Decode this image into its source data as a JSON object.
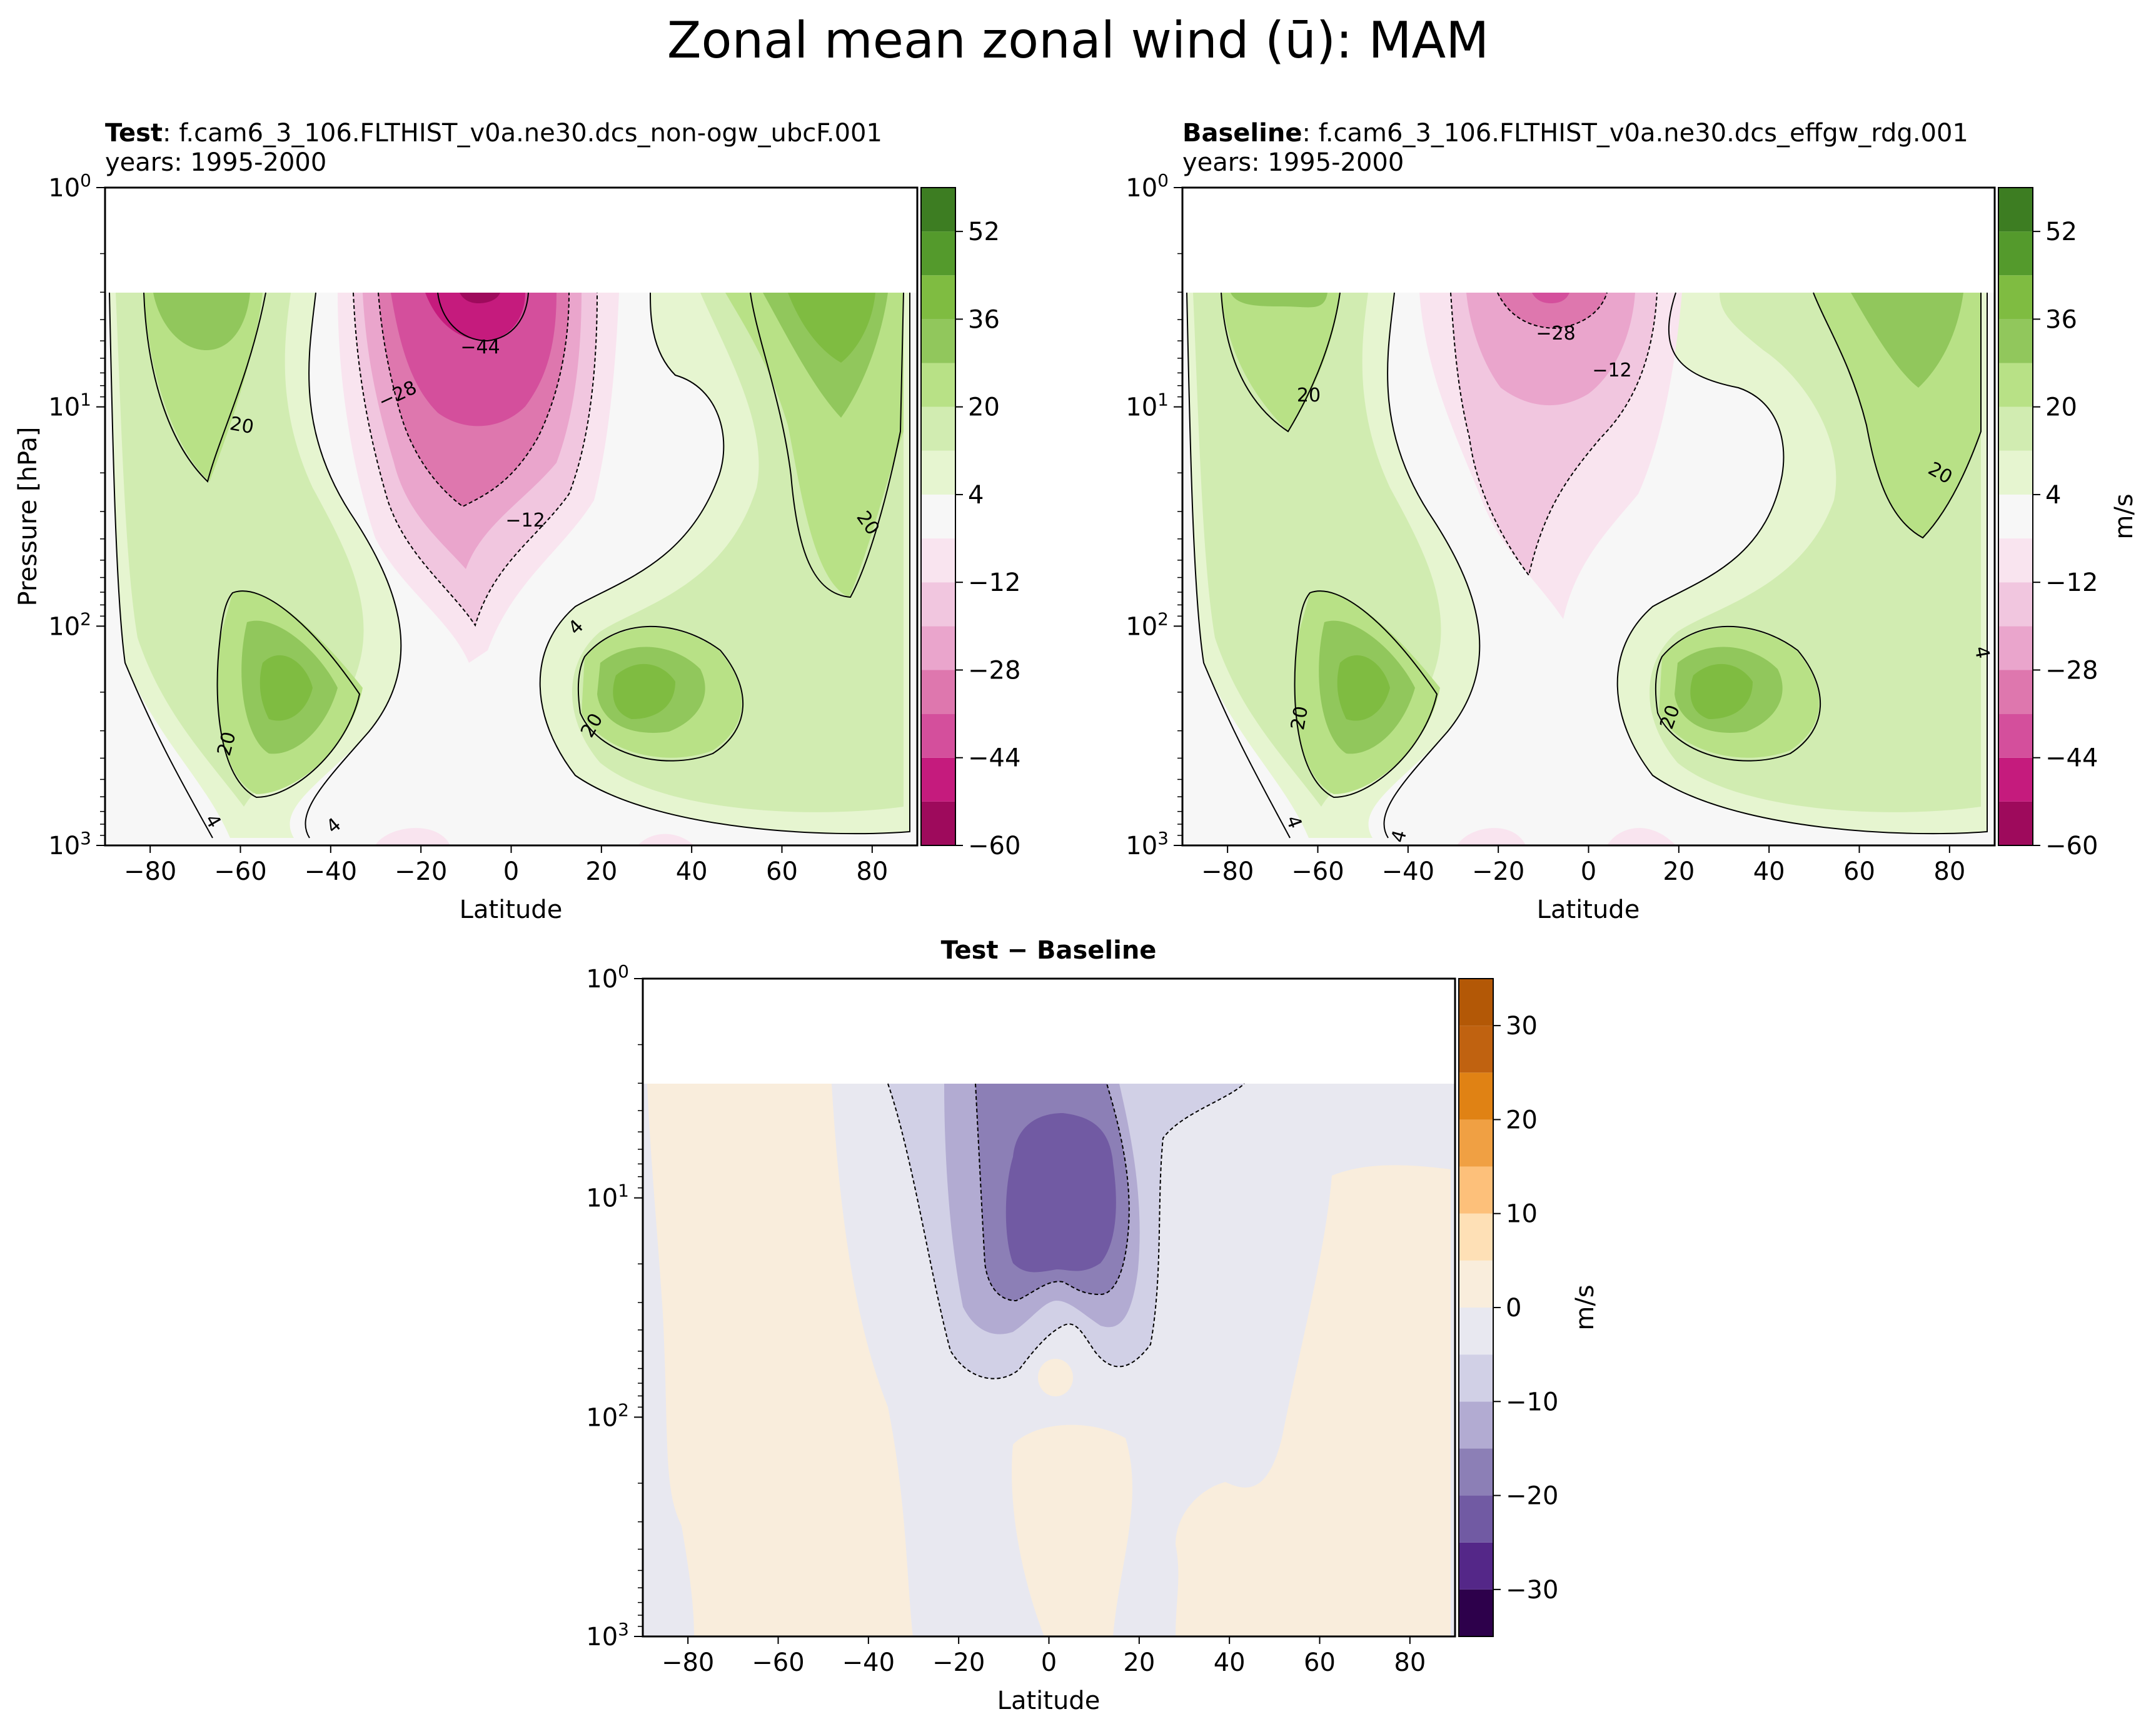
{
  "title": "Zonal mean zonal wind (ū): MAM",
  "chart_data": [
    {
      "type": "contour",
      "name": "test",
      "title_bold": "Test",
      "title_text": ": f.cam6_3_106.FLTHIST_v0a.ne30.dcs_non-ogw_ubcF.001",
      "years": "years: 1995-2000",
      "xlabel": "Latitude",
      "ylabel": "Pressure [hPa]",
      "xlim": [
        -90,
        90
      ],
      "xticks": [
        -80,
        -60,
        -40,
        -20,
        0,
        20,
        40,
        60,
        80
      ],
      "ylim_hpa": [
        1000,
        1
      ],
      "yticks": [
        "10^0",
        "10^1",
        "10^2",
        "10^3"
      ],
      "colorbar": {
        "label": "m/s",
        "levels": [
          -60,
          -52,
          -44,
          -36,
          -28,
          -20,
          -12,
          -4,
          4,
          12,
          20,
          28,
          36,
          44,
          52,
          60
        ],
        "ticks": [
          52,
          36,
          20,
          4,
          -12,
          -28,
          -44,
          -60
        ]
      },
      "contour_labels": [
        "20",
        "20",
        "4",
        "4",
        "−28",
        "−44",
        "−12",
        "4",
        "20",
        "20"
      ]
    },
    {
      "type": "contour",
      "name": "baseline",
      "title_bold": "Baseline",
      "title_text": ": f.cam6_3_106.FLTHIST_v0a.ne30.dcs_effgw_rdg.001",
      "years": "years: 1995-2000",
      "xlabel": "Latitude",
      "ylabel": "",
      "xlim": [
        -90,
        90
      ],
      "xticks": [
        -80,
        -60,
        -40,
        -20,
        0,
        20,
        40,
        60,
        80
      ],
      "ylim_hpa": [
        1000,
        1
      ],
      "yticks": [
        "10^0",
        "10^1",
        "10^2",
        "10^3"
      ],
      "colorbar": {
        "label": "m/s",
        "levels": [
          -60,
          -52,
          -44,
          -36,
          -28,
          -20,
          -12,
          -4,
          4,
          12,
          20,
          28,
          36,
          44,
          52,
          60
        ],
        "ticks": [
          52,
          36,
          20,
          4,
          -12,
          -28,
          -44,
          -60
        ]
      },
      "contour_labels": [
        "20",
        "20",
        "4",
        "4",
        "−28",
        "−12",
        "20",
        "20",
        "4"
      ]
    },
    {
      "type": "contour",
      "name": "difference",
      "title_bold": "Test − Baseline",
      "xlabel": "Latitude",
      "xlim": [
        -90,
        90
      ],
      "xticks": [
        -80,
        -60,
        -40,
        -20,
        0,
        20,
        40,
        60,
        80
      ],
      "ylim_hpa": [
        1000,
        1
      ],
      "yticks": [
        "10^0",
        "10^1",
        "10^2",
        "10^3"
      ],
      "colorbar": {
        "label": "m/s",
        "levels": [
          -35,
          -30,
          -25,
          -20,
          -15,
          -10,
          -5,
          0,
          5,
          10,
          15,
          20,
          25,
          30,
          35
        ],
        "ticks": [
          30,
          20,
          10,
          0,
          -10,
          -20,
          -30
        ]
      }
    }
  ],
  "colors": {
    "piyg": [
      "#9e0a5c",
      "#c51b7d",
      "#d44f9c",
      "#de77ae",
      "#eaa5cc",
      "#f1c6df",
      "#f9e4ef",
      "#f7f7f7",
      "#e6f5d0",
      "#d1ecb1",
      "#b8e186",
      "#91c75c",
      "#7fbc41",
      "#549a2c",
      "#3d7d22",
      "#276419"
    ],
    "puor": [
      "#2d004b",
      "#542788",
      "#715aa3",
      "#8c7fb6",
      "#b2abd2",
      "#d1d0e6",
      "#e8e8f0",
      "#f9eddc",
      "#fee0b6",
      "#fdc07a",
      "#f0a043",
      "#e08214",
      "#c06210",
      "#b35806",
      "#8a4507"
    ]
  }
}
